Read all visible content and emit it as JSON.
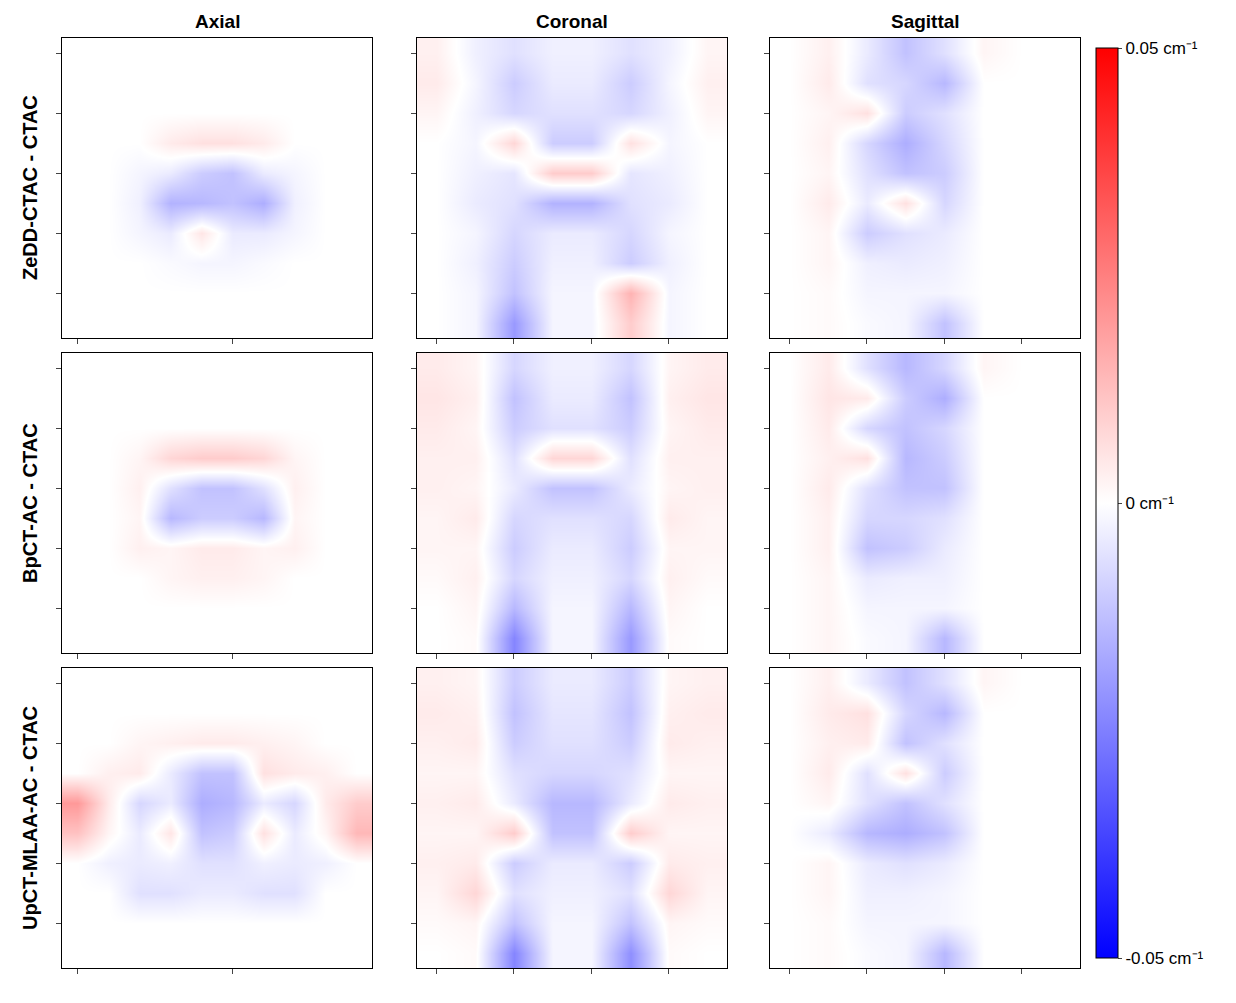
{
  "chart_data": {
    "type": "heatmap",
    "columns": [
      "Axial",
      "Coronal",
      "Sagittal"
    ],
    "rows": [
      "ZeDD-CTAC - CTAC",
      "BpCT-AC - CTAC",
      "UpCT-MLAA-AC - CTAC"
    ],
    "tick_labels": false,
    "colors": [
      "#0000ff",
      "#ffffff",
      "#ff0000"
    ],
    "zlim": [
      -0.05,
      0.05
    ],
    "zticks": [
      {
        "value": 0.05,
        "label": "0.05 cm⁻¹"
      },
      {
        "value": 0,
        "label": "0 cm⁻¹"
      },
      {
        "value": -0.05,
        "label": "-0.05 cm⁻¹"
      }
    ],
    "cells": [
      [
        [
          [
            0,
            0,
            0,
            0,
            0,
            0,
            0,
            0,
            0,
            0
          ],
          [
            0,
            0,
            0,
            0,
            0,
            0,
            0,
            0,
            0,
            0
          ],
          [
            0,
            0,
            0,
            0,
            0,
            0,
            0,
            0,
            0,
            0
          ],
          [
            0,
            0,
            0,
            0.004,
            0.006,
            0.006,
            0.004,
            0,
            0,
            0
          ],
          [
            0,
            0,
            -0.002,
            -0.004,
            -0.01,
            -0.012,
            -0.004,
            -0.002,
            0,
            0
          ],
          [
            0,
            0,
            -0.003,
            -0.015,
            -0.014,
            -0.012,
            -0.016,
            -0.003,
            0,
            0
          ],
          [
            0,
            0,
            -0.002,
            -0.004,
            0.005,
            -0.004,
            -0.004,
            -0.002,
            0,
            0
          ],
          [
            0,
            0,
            0,
            -0.001,
            -0.002,
            -0.002,
            -0.001,
            0,
            0,
            0
          ],
          [
            0,
            0,
            0,
            0,
            0,
            0,
            0,
            0,
            0,
            0
          ],
          [
            0,
            0,
            0,
            0,
            0,
            0,
            0,
            0,
            0,
            0
          ]
        ],
        [
          [
            0.003,
            -0.003,
            -0.006,
            -0.003,
            -0.003,
            -0.006,
            -0.003,
            0.002
          ],
          [
            0.004,
            -0.002,
            -0.01,
            -0.004,
            -0.004,
            -0.01,
            -0.002,
            0.003
          ],
          [
            0.002,
            -0.003,
            -0.008,
            -0.006,
            -0.006,
            -0.008,
            -0.003,
            0.002
          ],
          [
            0,
            -0.002,
            0.008,
            -0.01,
            -0.01,
            0.006,
            -0.002,
            0
          ],
          [
            0,
            -0.003,
            -0.005,
            0.01,
            0.01,
            -0.005,
            -0.003,
            0
          ],
          [
            0,
            -0.004,
            -0.006,
            -0.015,
            -0.015,
            -0.006,
            -0.004,
            0
          ],
          [
            0,
            -0.002,
            -0.008,
            -0.004,
            -0.004,
            -0.008,
            -0.002,
            0
          ],
          [
            0,
            -0.003,
            -0.01,
            -0.003,
            -0.003,
            -0.01,
            -0.003,
            0
          ],
          [
            0,
            -0.002,
            -0.012,
            -0.002,
            -0.002,
            0.015,
            -0.002,
            0
          ],
          [
            0,
            -0.002,
            -0.02,
            -0.002,
            -0.002,
            0.01,
            -0.002,
            0
          ]
        ],
        [
          [
            0,
            0.003,
            -0.004,
            -0.012,
            -0.006,
            0.002,
            0,
            0
          ],
          [
            0,
            0.004,
            -0.006,
            -0.008,
            -0.014,
            0,
            0,
            0
          ],
          [
            0,
            0.002,
            0.006,
            -0.01,
            -0.006,
            0,
            0,
            0
          ],
          [
            0,
            0.003,
            -0.008,
            -0.016,
            -0.008,
            0,
            0,
            0
          ],
          [
            0,
            0.002,
            -0.006,
            -0.012,
            -0.01,
            0,
            0,
            0
          ],
          [
            0,
            0.004,
            -0.004,
            0.006,
            -0.008,
            0,
            0,
            0
          ],
          [
            0,
            0.002,
            -0.01,
            -0.006,
            -0.004,
            0,
            0,
            0
          ],
          [
            0,
            0.002,
            -0.003,
            -0.004,
            -0.003,
            0,
            0,
            0
          ],
          [
            0,
            0.001,
            -0.002,
            -0.002,
            -0.002,
            0,
            0,
            0
          ],
          [
            0,
            0.001,
            -0.001,
            -0.002,
            -0.012,
            0,
            0,
            0
          ]
        ]
      ],
      [
        [
          [
            0,
            0,
            0,
            0,
            0,
            0,
            0,
            0,
            0,
            0
          ],
          [
            0,
            0,
            0,
            0,
            0,
            0,
            0,
            0,
            0,
            0
          ],
          [
            0,
            0,
            0,
            0,
            0,
            0,
            0,
            0,
            0,
            0
          ],
          [
            0,
            0,
            0.002,
            0.008,
            0.01,
            0.01,
            0.008,
            0.002,
            0,
            0
          ],
          [
            0,
            0,
            0.003,
            -0.006,
            -0.012,
            -0.012,
            -0.006,
            0.003,
            0,
            0
          ],
          [
            0,
            0,
            0.002,
            -0.014,
            -0.01,
            -0.01,
            -0.014,
            0.002,
            0,
            0
          ],
          [
            0,
            0,
            0.003,
            0.002,
            0.004,
            0.004,
            0.002,
            0.003,
            0,
            0
          ],
          [
            0,
            0,
            0,
            0.002,
            0.003,
            0.003,
            0.002,
            0,
            0,
            0
          ],
          [
            0,
            0,
            0,
            0,
            0,
            0,
            0,
            0,
            0,
            0
          ],
          [
            0,
            0,
            0,
            0,
            0,
            0,
            0,
            0,
            0,
            0
          ]
        ],
        [
          [
            0.004,
            0.002,
            -0.008,
            -0.003,
            -0.003,
            -0.008,
            0.002,
            0.004
          ],
          [
            0.005,
            0.003,
            -0.012,
            -0.004,
            -0.004,
            -0.012,
            0.003,
            0.005
          ],
          [
            0.004,
            0.002,
            -0.01,
            -0.006,
            -0.006,
            -0.01,
            0.002,
            0.004
          ],
          [
            0.003,
            0.003,
            -0.006,
            0.008,
            0.008,
            -0.006,
            0.003,
            0.003
          ],
          [
            0.003,
            0.002,
            -0.004,
            -0.012,
            -0.012,
            -0.004,
            0.002,
            0.003
          ],
          [
            0.002,
            0.004,
            -0.008,
            -0.006,
            -0.006,
            -0.008,
            0.004,
            0.002
          ],
          [
            0.002,
            0.002,
            -0.01,
            -0.004,
            -0.004,
            -0.01,
            0.002,
            0.002
          ],
          [
            0.001,
            0.003,
            -0.008,
            -0.003,
            -0.003,
            -0.008,
            0.003,
            0.001
          ],
          [
            0,
            0.002,
            -0.014,
            -0.002,
            -0.002,
            -0.014,
            0.002,
            0
          ],
          [
            0,
            0.001,
            -0.024,
            -0.002,
            -0.002,
            -0.02,
            0.001,
            0
          ]
        ],
        [
          [
            0,
            0.004,
            -0.006,
            -0.014,
            -0.008,
            0.002,
            0,
            0
          ],
          [
            0,
            0.005,
            0.004,
            -0.01,
            -0.016,
            0,
            0,
            0
          ],
          [
            0,
            0.004,
            -0.008,
            -0.012,
            -0.008,
            0,
            0,
            0
          ],
          [
            0,
            0.003,
            0.006,
            -0.014,
            -0.01,
            0,
            0,
            0
          ],
          [
            0,
            0.004,
            -0.006,
            -0.012,
            -0.012,
            0,
            0,
            0
          ],
          [
            0,
            0.003,
            -0.008,
            -0.008,
            -0.006,
            0,
            0,
            0
          ],
          [
            0,
            0.003,
            -0.012,
            -0.01,
            -0.004,
            0,
            0,
            0
          ],
          [
            0,
            0.002,
            -0.004,
            -0.003,
            -0.003,
            0,
            0,
            0
          ],
          [
            0,
            0.002,
            -0.002,
            -0.002,
            -0.002,
            0,
            0,
            0
          ],
          [
            0,
            0.002,
            -0.001,
            -0.002,
            -0.014,
            0,
            0,
            0
          ]
        ]
      ],
      [
        [
          [
            0,
            0,
            0,
            0,
            0,
            0,
            0,
            0,
            0,
            0
          ],
          [
            0,
            0,
            0,
            0,
            0,
            0,
            0,
            0,
            0,
            0
          ],
          [
            0,
            0,
            0.002,
            0.003,
            0.004,
            0.004,
            0.003,
            0.002,
            0,
            0
          ],
          [
            0,
            0.003,
            0.004,
            -0.004,
            -0.012,
            -0.012,
            0.006,
            0.004,
            0.003,
            0
          ],
          [
            0.02,
            0.004,
            -0.008,
            -0.004,
            -0.016,
            -0.014,
            -0.004,
            -0.008,
            0.004,
            0.01
          ],
          [
            0.012,
            0.002,
            -0.004,
            0.005,
            -0.012,
            -0.01,
            0.006,
            -0.004,
            0.002,
            0.014
          ],
          [
            0,
            -0.003,
            -0.004,
            -0.003,
            -0.006,
            -0.006,
            -0.003,
            -0.004,
            -0.003,
            0
          ],
          [
            0,
            0,
            -0.006,
            -0.006,
            -0.004,
            -0.004,
            -0.006,
            -0.006,
            0,
            0
          ],
          [
            0,
            0,
            0,
            0,
            0,
            0,
            0,
            0,
            0,
            0
          ],
          [
            0,
            0,
            0,
            0,
            0,
            0,
            0,
            0,
            0,
            0
          ]
        ],
        [
          [
            0.003,
            0.002,
            -0.01,
            -0.004,
            -0.004,
            -0.01,
            0.002,
            0.003
          ],
          [
            0.004,
            0.003,
            -0.012,
            -0.005,
            -0.005,
            -0.012,
            0.003,
            0.004
          ],
          [
            0.003,
            0.004,
            -0.01,
            -0.006,
            -0.006,
            -0.01,
            0.004,
            0.003
          ],
          [
            0.002,
            0.002,
            -0.006,
            -0.008,
            -0.008,
            -0.006,
            0.002,
            0.002
          ],
          [
            0.003,
            0.004,
            -0.004,
            -0.014,
            -0.014,
            -0.004,
            0.004,
            0.003
          ],
          [
            0.002,
            0.002,
            0.01,
            -0.012,
            -0.012,
            0.01,
            0.002,
            0.002
          ],
          [
            0.003,
            0.004,
            -0.01,
            -0.004,
            -0.004,
            -0.01,
            0.004,
            0.003
          ],
          [
            0.002,
            0.008,
            -0.006,
            -0.003,
            -0.003,
            -0.006,
            0.008,
            0.002
          ],
          [
            0.001,
            0.002,
            -0.012,
            -0.002,
            -0.002,
            -0.012,
            0.002,
            0.001
          ],
          [
            0,
            0.001,
            -0.024,
            -0.002,
            -0.002,
            -0.022,
            0.001,
            0
          ]
        ],
        [
          [
            0,
            0.003,
            -0.004,
            -0.012,
            -0.006,
            0.002,
            0,
            0
          ],
          [
            0,
            0.004,
            0.006,
            -0.008,
            -0.014,
            0,
            0,
            0
          ],
          [
            0,
            0.003,
            0.004,
            -0.012,
            -0.006,
            0,
            0,
            0
          ],
          [
            0,
            0.004,
            -0.006,
            0.006,
            -0.01,
            0,
            0,
            0
          ],
          [
            0,
            0.002,
            -0.006,
            -0.012,
            -0.006,
            0,
            0,
            0
          ],
          [
            0,
            -0.004,
            -0.014,
            -0.016,
            -0.012,
            0,
            0,
            0
          ],
          [
            0,
            0.002,
            -0.004,
            -0.006,
            -0.004,
            0,
            0,
            0
          ],
          [
            0,
            0.002,
            -0.003,
            -0.003,
            -0.002,
            0,
            0,
            0
          ],
          [
            0,
            0.001,
            -0.002,
            -0.002,
            -0.002,
            0,
            0,
            0
          ],
          [
            0,
            0.001,
            -0.001,
            -0.002,
            -0.014,
            0,
            0,
            0
          ]
        ]
      ]
    ]
  }
}
